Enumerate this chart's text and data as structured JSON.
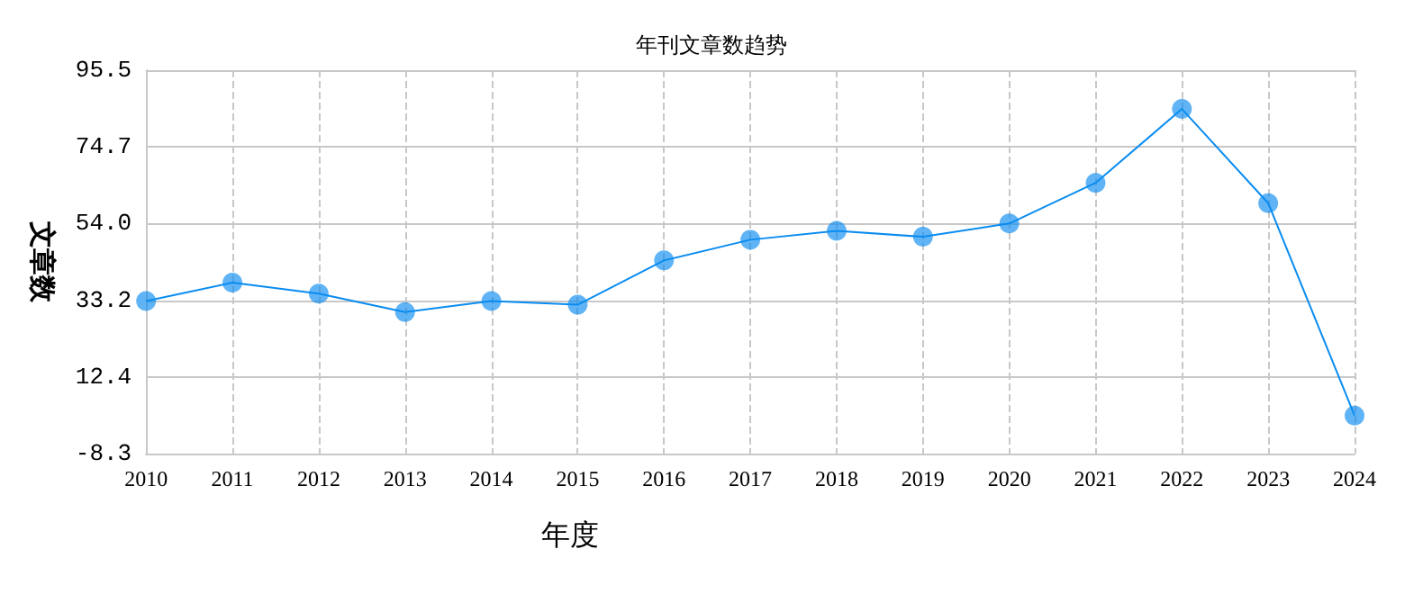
{
  "chart_data": {
    "type": "line",
    "title": "年刊文章数趋势",
    "xlabel": "年度",
    "ylabel": "文章数",
    "categories": [
      "2010",
      "2011",
      "2012",
      "2013",
      "2014",
      "2015",
      "2016",
      "2017",
      "2018",
      "2019",
      "2020",
      "2021",
      "2022",
      "2023",
      "2024"
    ],
    "series": [
      {
        "color": "#0a8cf0",
        "values": [
          33,
          38,
          35,
          30,
          33,
          32,
          44,
          49.6,
          52,
          50.4,
          54,
          65,
          85,
          59.5,
          2
        ]
      }
    ],
    "ylim": [
      -8.3,
      95.5
    ],
    "yticks": [
      -8.3,
      12.4,
      33.2,
      {
        "value": 54,
        "label": "54.0"
      },
      74.7,
      95.5
    ],
    "grid": true,
    "marker": "circle",
    "line_style": "solid"
  }
}
